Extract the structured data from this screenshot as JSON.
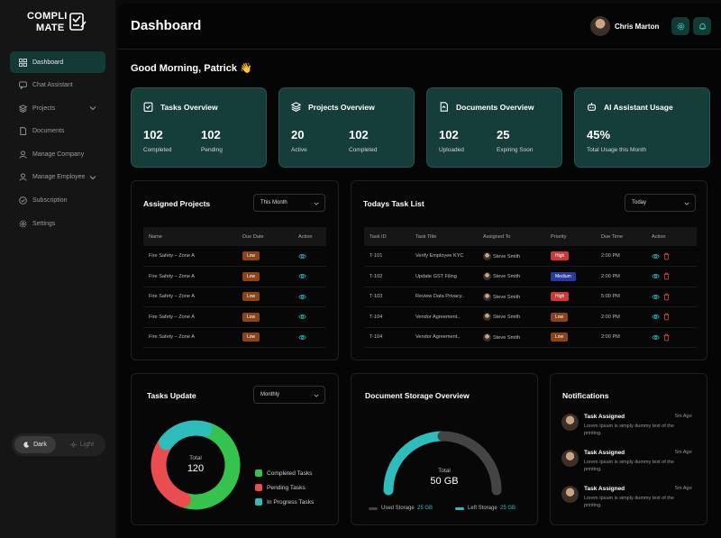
{
  "app": {
    "logo_line1": "COMPLI",
    "logo_line2": "MATE"
  },
  "sidebar": {
    "items": [
      {
        "label": "Dashboard",
        "icon": "grid-icon",
        "active": true
      },
      {
        "label": "Chat Assistant",
        "icon": "chat-icon"
      },
      {
        "label": "Projects",
        "icon": "layers-icon",
        "has_chevron": true
      },
      {
        "label": "Documents",
        "icon": "document-icon"
      },
      {
        "label": "Manage Company",
        "icon": "user-icon"
      },
      {
        "label": "Manage Employee",
        "icon": "user-icon",
        "has_chevron": true
      },
      {
        "label": "Subscription",
        "icon": "badge-icon"
      },
      {
        "label": "Settings",
        "icon": "gear-icon"
      }
    ],
    "theme": {
      "dark_label": "Dark",
      "light_label": "Light",
      "selected": "Dark"
    }
  },
  "header": {
    "title": "Dashboard",
    "user_name": "Chris Marton"
  },
  "greeting": "Good Morning, Patrick 👋",
  "stats": [
    {
      "title": "Tasks Overview",
      "icon": "task-icon",
      "a_value": "102",
      "a_label": "Completed",
      "b_value": "102",
      "b_label": "Pending"
    },
    {
      "title": "Projects Overview",
      "icon": "layers-icon",
      "a_value": "20",
      "a_label": "Active",
      "b_value": "102",
      "b_label": "Completed"
    },
    {
      "title": "Documents Overview",
      "icon": "document-icon",
      "a_value": "102",
      "a_label": "Uploaded",
      "b_value": "25",
      "b_label": "Expiring Soon"
    },
    {
      "title": "AI Assistant Usage",
      "icon": "robot-icon",
      "a_value": "45%",
      "a_label": "Total Usage this Month"
    }
  ],
  "assigned_projects": {
    "title": "Assigned Projects",
    "filter": "This Month",
    "columns": [
      "Name",
      "Due Date",
      "Action"
    ],
    "rows": [
      {
        "name": "Fire Safety – Zone A",
        "due": "Low"
      },
      {
        "name": "Fire Safety – Zone A",
        "due": "Low"
      },
      {
        "name": "Fire Safety – Zone A",
        "due": "Low"
      },
      {
        "name": "Fire Safety – Zone A",
        "due": "Low"
      },
      {
        "name": "Fire Safety – Zone A",
        "due": "Low"
      }
    ]
  },
  "todays_tasks": {
    "title": "Todays Task List",
    "filter": "Today",
    "columns": [
      "Task ID",
      "Task Title",
      "Assigned To",
      "Priority",
      "Due Time",
      "Action"
    ],
    "rows": [
      {
        "id": "T-101",
        "title": "Verify Employee KYC",
        "assignee": "Steve Smith",
        "priority": "High",
        "time": "2:00 PM"
      },
      {
        "id": "T-102",
        "title": "Update GST Filing",
        "assignee": "Steve Smith",
        "priority": "Medium",
        "time": "2:00 PM"
      },
      {
        "id": "T-103",
        "title": "Review Data Privacy..",
        "assignee": "Steve Smith",
        "priority": "High",
        "time": "5:00 PM"
      },
      {
        "id": "T-104",
        "title": "Vendor Agreement..",
        "assignee": "Steve Smith",
        "priority": "Low",
        "time": "2:00 PM"
      },
      {
        "id": "T-104",
        "title": "Vendor Agreement..",
        "assignee": "Steve Smith",
        "priority": "Low",
        "time": "2:00 PM"
      }
    ]
  },
  "tasks_update": {
    "title": "Tasks Update",
    "filter": "Monthly",
    "center_label": "Total",
    "center_value": "120",
    "legend": [
      {
        "label": "Completed Tasks",
        "color": "#35c24d"
      },
      {
        "label": "Pending Tasks",
        "color": "#ea4d50"
      },
      {
        "label": "In Progress Tasks",
        "color": "#2fbdbb"
      }
    ]
  },
  "chart_data": [
    {
      "type": "pie",
      "variant": "donut",
      "labels": [
        "Completed Tasks",
        "Pending Tasks",
        "In Progress Tasks"
      ],
      "values": [
        50,
        30,
        20
      ],
      "colors": [
        "#35c24d",
        "#ea4d50",
        "#2fbdbb"
      ]
    },
    {
      "type": "pie",
      "variant": "semi-donut gauge",
      "labels": [
        "Used Storage",
        "Left Storage"
      ],
      "values": [
        25,
        25
      ],
      "unit": "GB",
      "colors": [
        "#444444",
        "#2fbdbb"
      ]
    }
  ],
  "storage": {
    "title": "Document Storage Overview",
    "center_label": "Total",
    "center_value": "50 GB",
    "used_label": "Used Storage",
    "used_value": "25 GB",
    "left_label": "Left Storage",
    "left_value": "25 GB"
  },
  "notifications": {
    "title": "Notifications",
    "items": [
      {
        "title": "Task Assigned",
        "time": "5m Ago",
        "text": "Lorem Ipsum is simply dummy text of the printing."
      },
      {
        "title": "Task Assigned",
        "time": "5m Ago",
        "text": "Lorem Ipsum is simply dummy text of the printing."
      },
      {
        "title": "Task Assigned",
        "time": "5m Ago",
        "text": "Lorem Ipsum is simply dummy text of the printing."
      }
    ]
  }
}
